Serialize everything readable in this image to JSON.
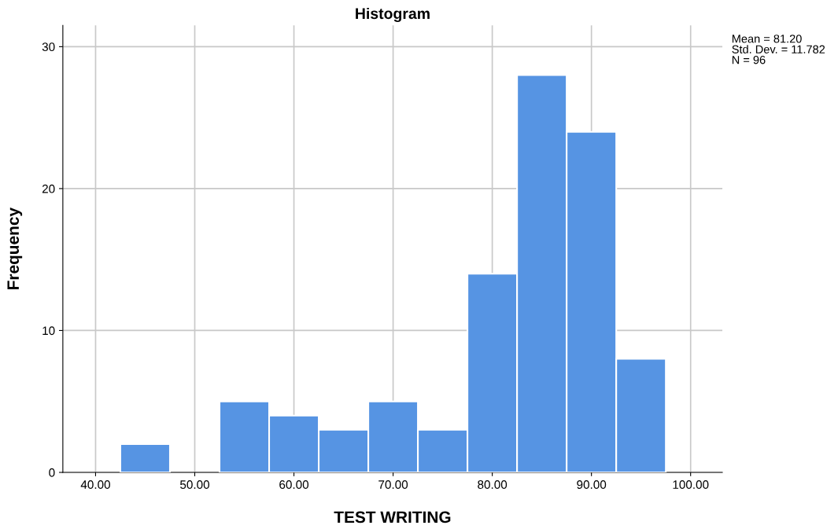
{
  "chart_data": {
    "type": "histogram",
    "title": "Histogram",
    "xlabel": "TEST WRITING",
    "ylabel": "Frequency",
    "bins": [
      42.5,
      47.5,
      52.5,
      57.5,
      62.5,
      67.5,
      72.5,
      77.5,
      82.5,
      87.5,
      92.5,
      97.5
    ],
    "values": [
      2,
      0,
      5,
      4,
      3,
      5,
      3,
      14,
      28,
      24,
      8
    ],
    "color": "#5694e3",
    "xlim": [
      36.7,
      103.2
    ],
    "xticks": [
      {
        "value": 40,
        "label": "40.00"
      },
      {
        "value": 50,
        "label": "50.00"
      },
      {
        "value": 60,
        "label": "60.00"
      },
      {
        "value": 70,
        "label": "70.00"
      },
      {
        "value": 80,
        "label": "80.00"
      },
      {
        "value": 90,
        "label": "90.00"
      },
      {
        "value": 100,
        "label": "100.00"
      }
    ],
    "ylim": [
      0,
      31.5
    ],
    "yticks": [
      0,
      10,
      20,
      30
    ],
    "grid": true,
    "annotations": [
      "Mean = 81.20",
      "Std. Dev. = 11.782",
      "N = 96"
    ]
  }
}
